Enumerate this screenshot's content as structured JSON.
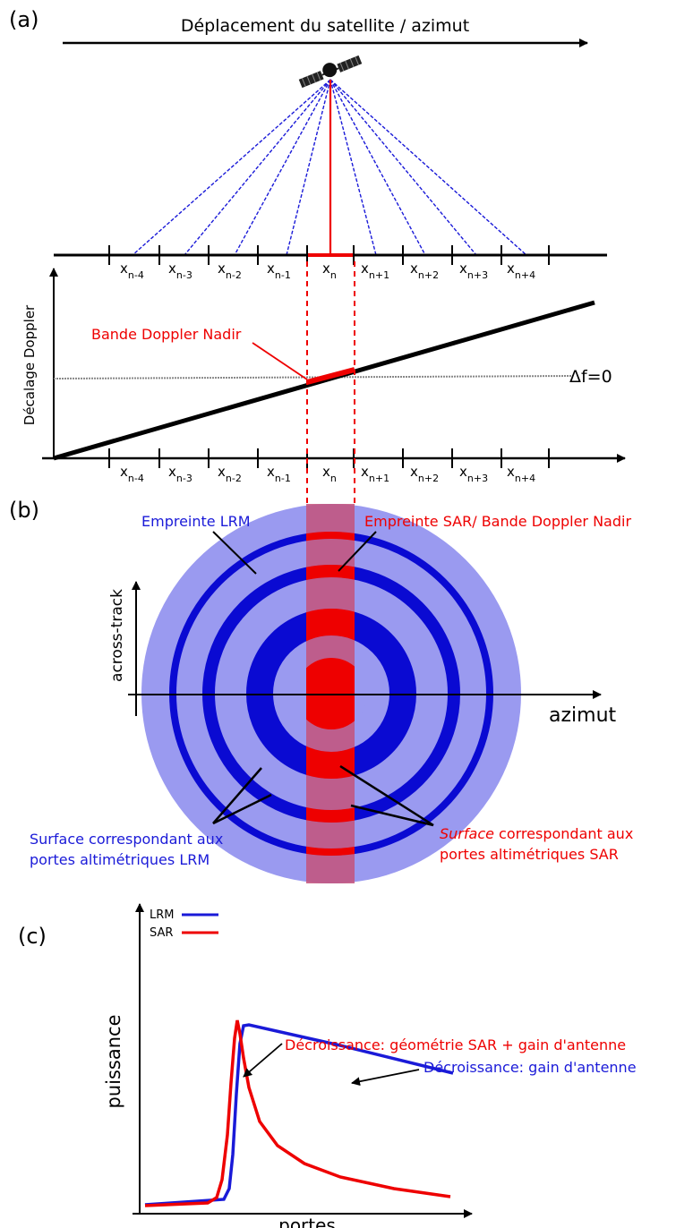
{
  "panels": {
    "a": {
      "label": "(a)",
      "motion_title": "Déplacement du satellite / azimut",
      "cells": [
        "x",
        "x",
        "x",
        "x",
        "x",
        "x",
        "x",
        "x",
        "x"
      ],
      "subscripts": [
        "n-4",
        "n-3",
        "n-2",
        "n-1",
        "n",
        "n+1",
        "n+2",
        "n+3",
        "n+4"
      ],
      "yaxis_label": "Décalage Doppler",
      "nadir_band_label": "Bande Doppler Nadir",
      "zero_label": "Δf=0"
    },
    "b": {
      "label": "(b)",
      "lrm_footprint": "Empreinte LRM",
      "sar_footprint": "Empreinte SAR/ Bande Doppler Nadir",
      "yaxis_label": "across-track",
      "xaxis_label": "azimut",
      "lrm_surface": [
        "Surface correspondant aux",
        "portes altimétriques LRM"
      ],
      "sar_surface_italic": "Surface",
      "sar_surface": [
        " correspondant aux",
        "portes altimétriques SAR"
      ]
    },
    "c": {
      "label": "(c)",
      "legend": [
        "LRM",
        "SAR"
      ],
      "ylabel": "puissance",
      "xlabel": "portes",
      "sar_annotation": "Décroissance: géométrie SAR + gain d'antenne",
      "lrm_annotation": "Décroissance: gain d'antenne"
    }
  },
  "colors": {
    "lrm": "#1a1ad8",
    "sar": "#ee0000",
    "footprint": "#9a9af0",
    "ring": "#0a0ad2"
  },
  "icons": [
    "satellite-icon"
  ]
}
